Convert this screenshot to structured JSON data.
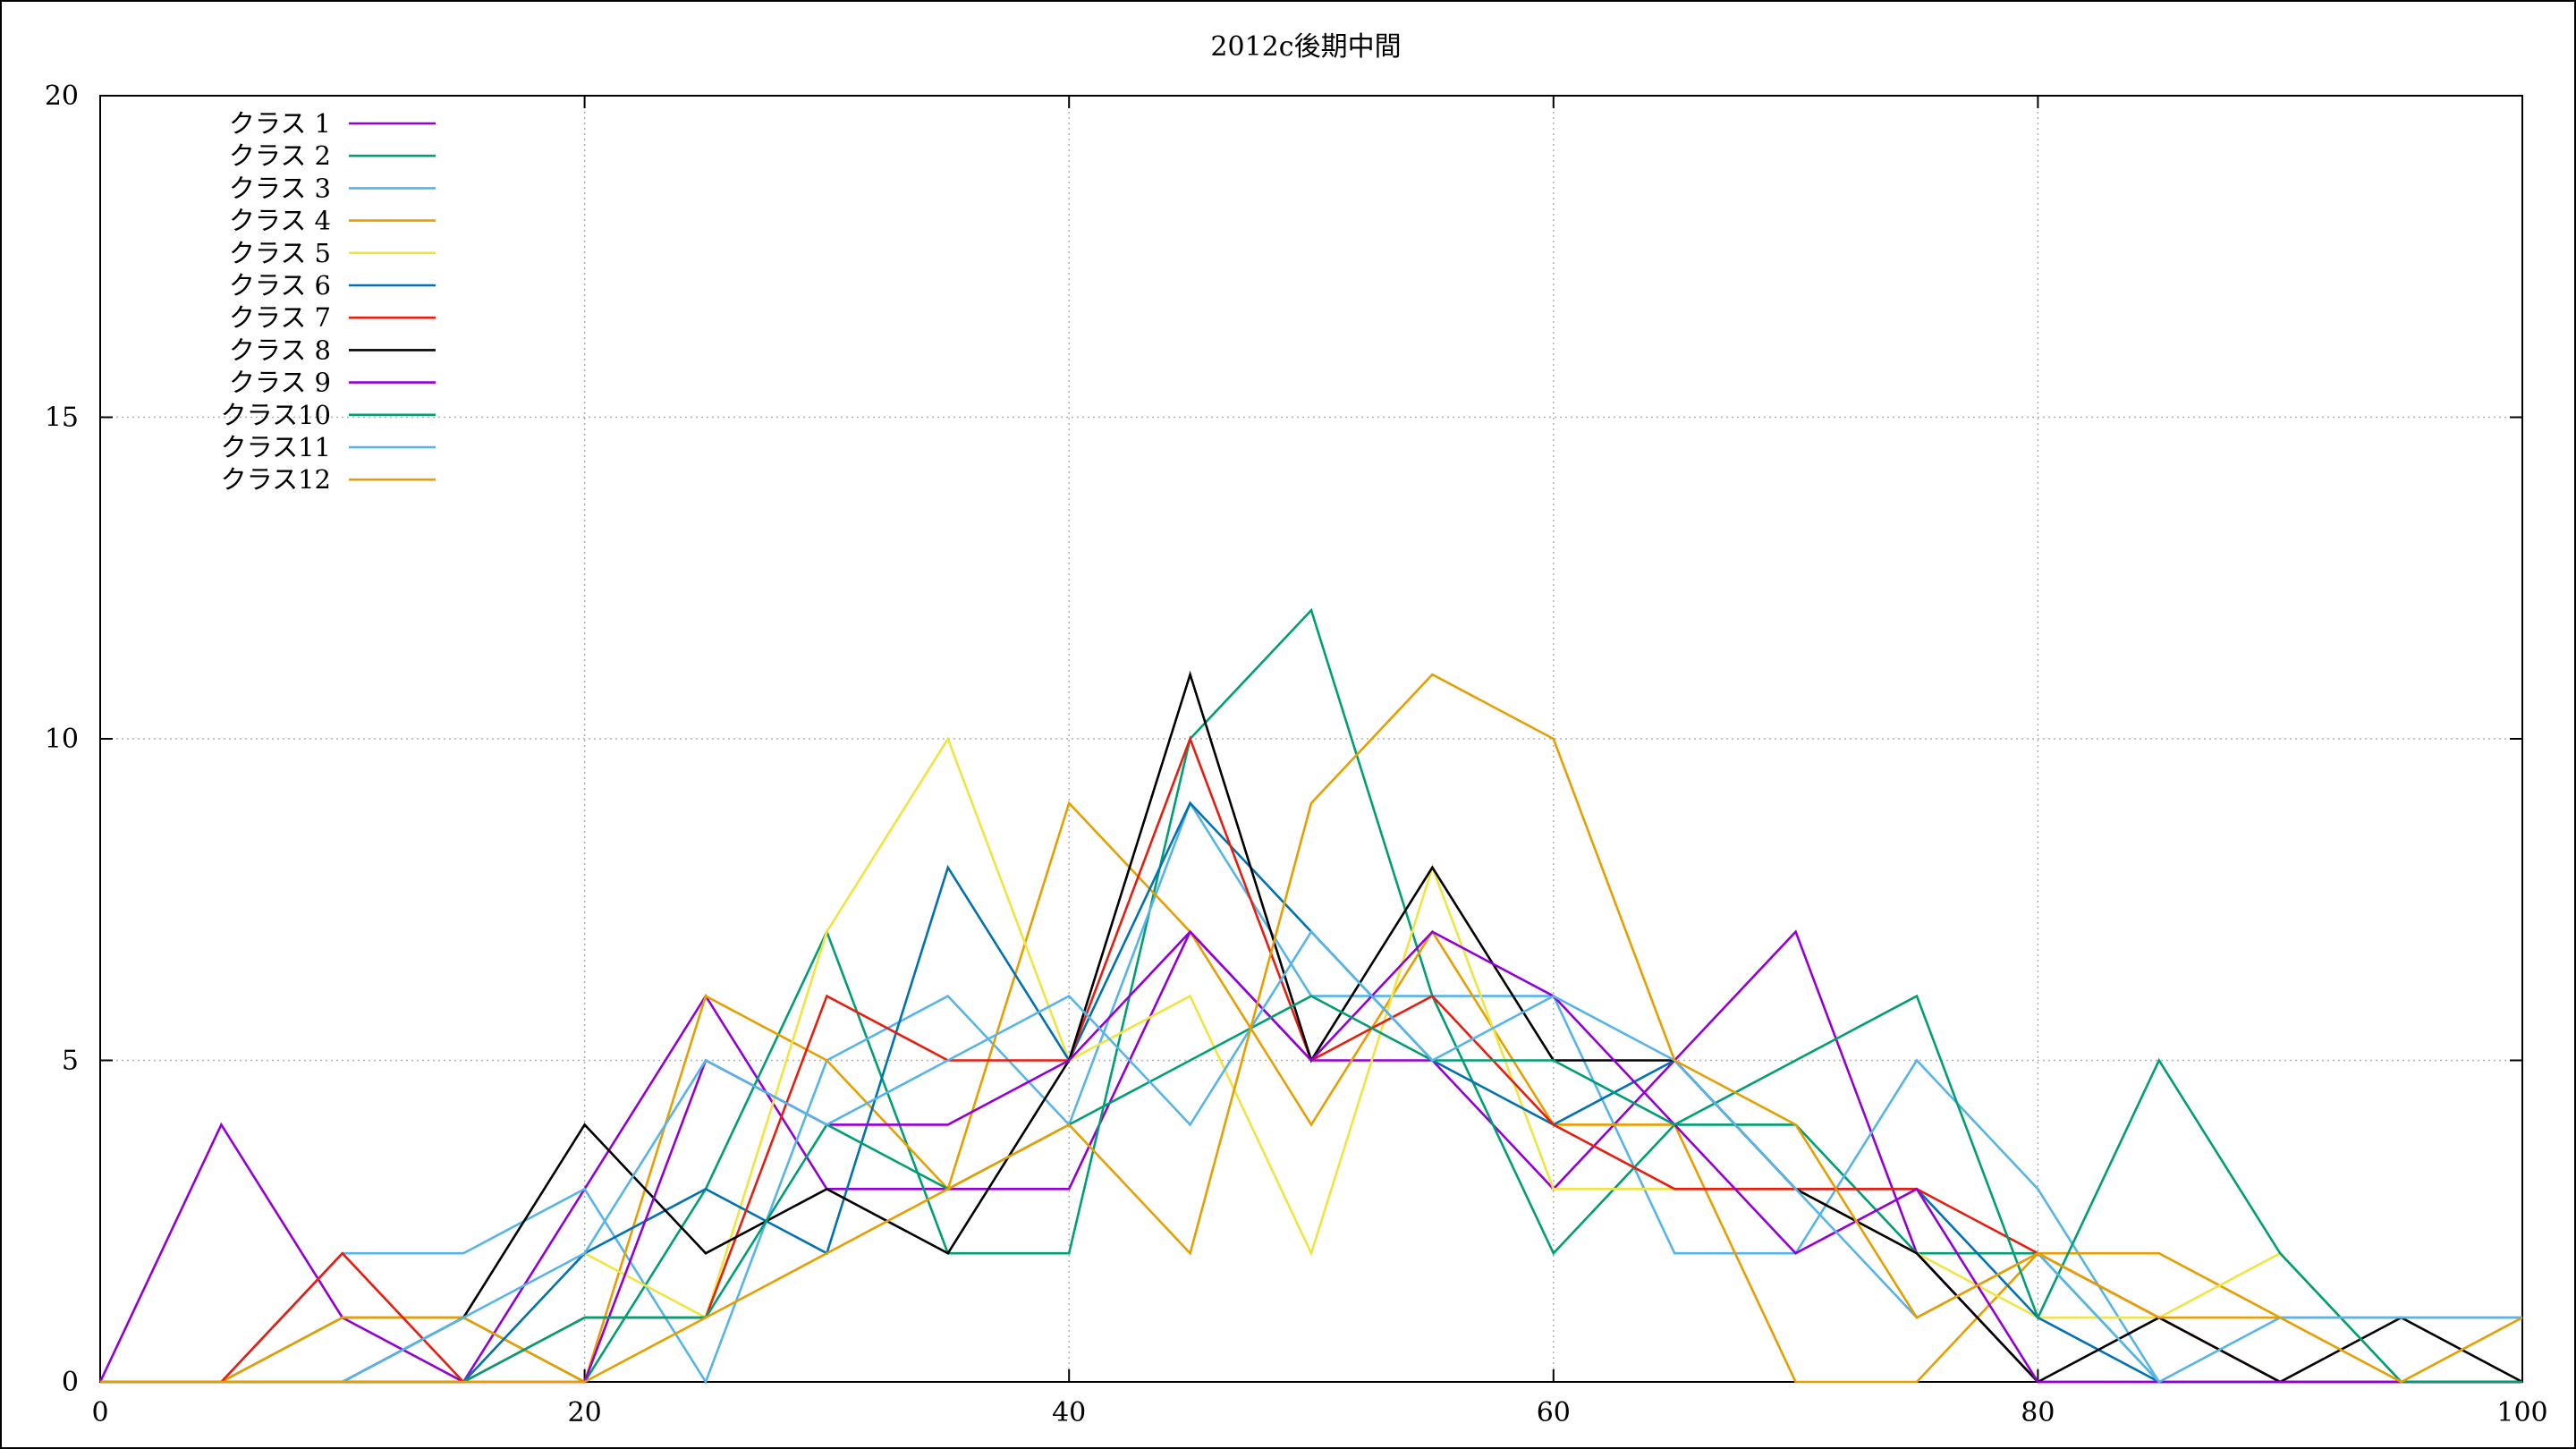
{
  "chart_data": {
    "type": "line",
    "title": "2012c後期中間",
    "xlabel": "",
    "ylabel": "",
    "xlim": [
      0,
      100
    ],
    "ylim": [
      0,
      20
    ],
    "x_ticks": [
      "0",
      "20",
      "40",
      "60",
      "80",
      "100"
    ],
    "y_ticks": [
      "0",
      "5",
      "10",
      "15",
      "20"
    ],
    "grid": true,
    "legend_position": "top-left",
    "x": [
      0,
      5,
      10,
      15,
      20,
      25,
      30,
      35,
      40,
      45,
      50,
      55,
      60,
      65,
      70,
      75,
      80,
      85,
      90,
      95,
      100
    ],
    "series": [
      {
        "name": "クラス 1",
        "color": "#9400d3",
        "values": [
          0,
          4,
          1,
          0,
          3,
          6,
          3,
          3,
          3,
          7,
          5,
          5,
          3,
          5,
          7,
          2,
          0,
          0,
          0,
          0,
          0
        ]
      },
      {
        "name": "クラス 2",
        "color": "#009e73",
        "values": [
          0,
          0,
          1,
          1,
          0,
          3,
          7,
          2,
          2,
          10,
          12,
          6,
          2,
          4,
          4,
          2,
          2,
          0,
          0,
          0,
          0
        ]
      },
      {
        "name": "クラス 3",
        "color": "#56b4e9",
        "values": [
          0,
          0,
          2,
          2,
          3,
          0,
          5,
          6,
          4,
          9,
          6,
          6,
          6,
          2,
          2,
          5,
          3,
          0,
          0,
          0,
          0
        ]
      },
      {
        "name": "クラス 4",
        "color": "#e69f00",
        "values": [
          0,
          0,
          1,
          1,
          0,
          6,
          5,
          3,
          9,
          7,
          4,
          7,
          4,
          4,
          0,
          0,
          2,
          2,
          1,
          1,
          1
        ]
      },
      {
        "name": "クラス 5",
        "color": "#f0e442",
        "values": [
          0,
          0,
          0,
          0,
          2,
          1,
          7,
          10,
          5,
          6,
          2,
          8,
          3,
          3,
          3,
          2,
          1,
          1,
          2,
          0,
          0
        ]
      },
      {
        "name": "クラス 6",
        "color": "#0072b2",
        "values": [
          0,
          0,
          0,
          0,
          2,
          3,
          2,
          8,
          5,
          9,
          7,
          5,
          4,
          5,
          3,
          3,
          1,
          0,
          0,
          0,
          0
        ]
      },
      {
        "name": "クラス 7",
        "color": "#e51e10",
        "values": [
          0,
          0,
          2,
          0,
          1,
          1,
          6,
          5,
          5,
          10,
          5,
          6,
          4,
          3,
          3,
          3,
          2,
          1,
          0,
          0,
          0
        ]
      },
      {
        "name": "クラス 8",
        "color": "#000000",
        "values": [
          0,
          0,
          0,
          1,
          4,
          2,
          3,
          2,
          5,
          11,
          5,
          8,
          5,
          5,
          3,
          2,
          0,
          1,
          0,
          1,
          0
        ]
      },
      {
        "name": "クラス 9",
        "color": "#9400d3",
        "values": [
          0,
          0,
          0,
          0,
          0,
          5,
          4,
          4,
          5,
          7,
          5,
          7,
          6,
          4,
          2,
          3,
          0,
          0,
          0,
          0,
          0
        ]
      },
      {
        "name": "クラス10",
        "color": "#009e73",
        "values": [
          0,
          0,
          0,
          0,
          1,
          1,
          4,
          3,
          4,
          5,
          6,
          5,
          5,
          4,
          5,
          6,
          1,
          5,
          2,
          0,
          0
        ]
      },
      {
        "name": "クラス11",
        "color": "#56b4e9",
        "values": [
          0,
          0,
          0,
          1,
          2,
          5,
          4,
          5,
          6,
          4,
          7,
          5,
          6,
          5,
          3,
          1,
          2,
          0,
          1,
          1,
          1
        ]
      },
      {
        "name": "クラス12",
        "color": "#e69f00",
        "values": [
          0,
          0,
          0,
          0,
          0,
          1,
          2,
          3,
          4,
          2,
          9,
          11,
          10,
          5,
          4,
          1,
          2,
          1,
          1,
          0,
          1
        ]
      }
    ]
  }
}
